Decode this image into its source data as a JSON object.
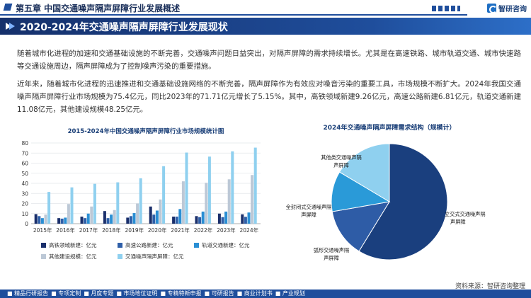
{
  "header": {
    "chapter_title": "第五章 中国交通噪声隔声屏障行业发展概述",
    "logo_text": "智研咨询"
  },
  "section": {
    "title": "2020-2024年交通噪声隔声屏障行业发展现状"
  },
  "paragraphs": [
    "随着城市化进程的加速和交通基础设施的不断完善，交通噪声问题日益突出，对隔声屏障的需求持续增长。尤其是在高速铁路、城市轨道交通、城市快速路等交通设施周边，隔声屏障成为了控制噪声污染的重要措施。",
    "近年来，随着城市化进程的迅速推进和交通基础设施网络的不断完善，隔声屏障作为有效应对噪音污染的重要工具，市场规模不断扩大。2024年我国交通噪声隔声屏障行业市场规模为75.4亿元，同比2023年的71.71亿元增长了5.15%。其中，高铁领域新建9.26亿元，高速公路新建6.81亿元，轨道交通新建11.08亿元，其他建设规模48.25亿元。"
  ],
  "chart_data": [
    {
      "type": "bar",
      "title": "2015-2024年中国交通噪声隔声屏障行业市场规模统计图",
      "categories": [
        "2015年",
        "2016年",
        "2017年",
        "2018年",
        "2019年",
        "2020年",
        "2021年",
        "2022年",
        "2023年",
        "2024年"
      ],
      "ylim": [
        0,
        80
      ],
      "yticks": [
        0,
        10,
        20,
        30,
        40,
        50,
        60,
        70,
        80
      ],
      "grid": true,
      "legend_position": "bottom",
      "series": [
        {
          "name": "高铁领域新建：亿元",
          "color": "#1a2f6b",
          "values": [
            9.5,
            5.5,
            7.0,
            12.5,
            6.0,
            17.0,
            7.0,
            7.5,
            10.0,
            9.26
          ]
        },
        {
          "name": "高速公路新建：亿元",
          "color": "#2f5fa8",
          "values": [
            7.5,
            5.0,
            5.5,
            5.5,
            7.5,
            9.0,
            7.0,
            6.5,
            6.5,
            6.81
          ]
        },
        {
          "name": "轨道交通新建：亿元",
          "color": "#2a8fd4",
          "values": [
            5.5,
            6.0,
            10.0,
            9.0,
            10.5,
            13.0,
            14.5,
            12.0,
            12.0,
            11.08
          ]
        },
        {
          "name": "其他建设规模：亿元",
          "color": "#bcc8d6",
          "values": [
            9.0,
            19.5,
            17.0,
            13.5,
            20.0,
            24.0,
            42.0,
            40.5,
            44.0,
            48.25
          ]
        },
        {
          "name": "交通噪声隔声屏障：亿元",
          "color": "#8fd0ef",
          "values": [
            31.5,
            36.0,
            39.5,
            41.0,
            45.0,
            57.0,
            70.5,
            66.5,
            71.71,
            75.4
          ]
        }
      ]
    },
    {
      "type": "pie",
      "title": "2024年交通噪声隔声屏障需求结构（规模计）",
      "slices": [
        {
          "label": "立交式交通噪声隔声屏障",
          "value": 48.25,
          "color": "#1a3f7e"
        },
        {
          "label": "弧形交通噪声隔声屏障",
          "value": 11.08,
          "color": "#2e5ca6"
        },
        {
          "label": "全封闭式交通噪声隔声屏障",
          "value": 9.26,
          "color": "#2a9ad8"
        },
        {
          "label": "其他类交通噪声隔声屏障",
          "value": 13.5,
          "color": "#8fd0ef"
        }
      ]
    }
  ],
  "footer": {
    "source": "资料来源：智研咨询整理",
    "links": [
      "精品行研报告",
      "专项定制",
      "月度专题",
      "市场地位证明",
      "专精特新申报",
      "可研报告",
      "商业计划书",
      "产业规划"
    ]
  }
}
